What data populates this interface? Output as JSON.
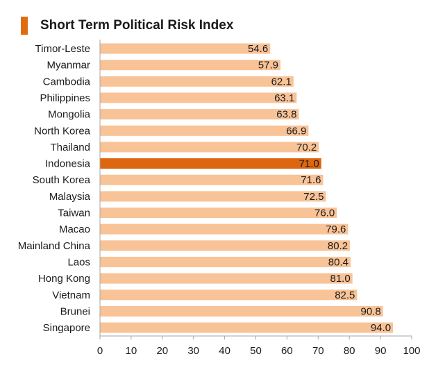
{
  "chart_data": {
    "type": "bar",
    "orientation": "horizontal",
    "title": "Short Term Political Risk Index",
    "categories": [
      "Timor-Leste",
      "Myanmar",
      "Cambodia",
      "Philippines",
      "Mongolia",
      "North Korea",
      "Thailand",
      "Indonesia",
      "South Korea",
      "Malaysia",
      "Taiwan",
      "Macao",
      "Mainland China",
      "Laos",
      "Hong Kong",
      "Vietnam",
      "Brunei",
      "Singapore"
    ],
    "values": [
      54.6,
      57.9,
      62.1,
      63.1,
      63.8,
      66.9,
      70.2,
      71.0,
      71.6,
      72.5,
      76.0,
      79.6,
      80.2,
      80.4,
      81.0,
      82.5,
      90.8,
      94.0
    ],
    "value_labels": [
      "54.6",
      "57.9",
      "62.1",
      "63.1",
      "63.8",
      "66.9",
      "70.2",
      "71.0",
      "71.6",
      "72.5",
      "76.0",
      "79.6",
      "80.2",
      "80.4",
      "81.0",
      "82.5",
      "90.8",
      "94.0"
    ],
    "highlight": "Indonesia",
    "xlim": [
      0,
      100
    ],
    "xticks": [
      "0",
      "10",
      "20",
      "30",
      "40",
      "50",
      "60",
      "70",
      "80",
      "90",
      "100"
    ],
    "xlabel": "",
    "ylabel": "",
    "colors": {
      "bar": "#f8c397",
      "highlight": "#dd6610",
      "axis": "#a6a6a6",
      "text": "#1a1a1a",
      "title_accent": "#e06c10"
    }
  }
}
